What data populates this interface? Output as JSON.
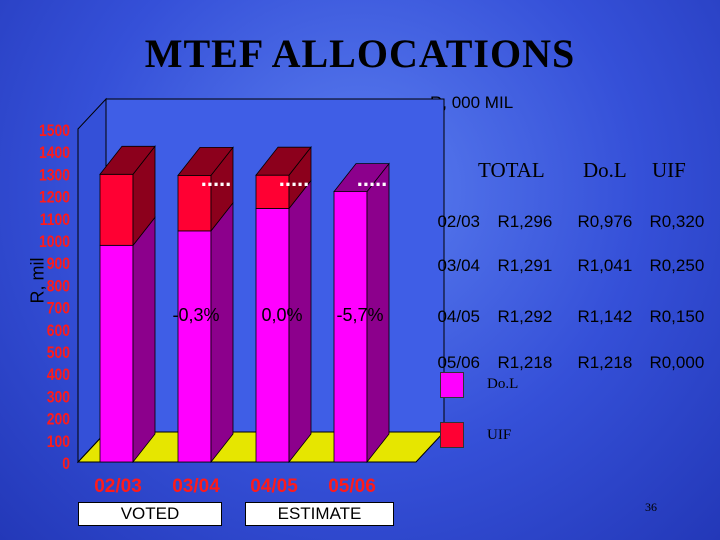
{
  "slide": {
    "title": "MTEF ALLOCATIONS",
    "units": "R, 000 MIL",
    "page_number": "36"
  },
  "table": {
    "headers": [
      "TOTAL",
      "Do.L",
      "UIF"
    ],
    "rows": [
      {
        "year": "02/03",
        "total": "R1,296",
        "dol": "R0,976",
        "uif": "R0,320"
      },
      {
        "year": "03/04",
        "total": "R1,291",
        "dol": "R1,041",
        "uif": "R0,250"
      },
      {
        "year": "04/05",
        "total": "R1,292",
        "dol": "R1,142",
        "uif": "R0,150"
      },
      {
        "year": "05/06",
        "total": "R1,218",
        "dol": "R1,218",
        "uif": "R0,000"
      }
    ]
  },
  "legend": {
    "items": [
      {
        "label": "Do.L",
        "color": "#ff00ff"
      },
      {
        "label": "UIF",
        "color": "#ff0033"
      }
    ]
  },
  "groups": {
    "voted": "VOTED",
    "estimate": "ESTIMATE"
  },
  "chart_data": {
    "type": "bar",
    "stacked": true,
    "three_d": true,
    "title": "MTEF ALLOCATIONS",
    "xlabel": "",
    "ylabel": "R, mil",
    "categories": [
      "02/03",
      "03/04",
      "04/05",
      "05/06"
    ],
    "series": [
      {
        "name": "Do.L",
        "color": "#ff00ff",
        "values": [
          976,
          1041,
          1142,
          1218
        ]
      },
      {
        "name": "UIF",
        "color": "#ff0033",
        "values": [
          320,
          250,
          150,
          0
        ]
      }
    ],
    "ylim": [
      0,
      1500
    ],
    "yticks": [
      "0",
      "100",
      "200",
      "300",
      "400",
      "500",
      "600",
      "700",
      "800",
      "900",
      "1000",
      "1100",
      "1200",
      "1300",
      "1400",
      "1500"
    ],
    "annotations": [
      "-0,3%",
      "0,0%",
      "-5,7%"
    ],
    "total_marker": "....."
  }
}
